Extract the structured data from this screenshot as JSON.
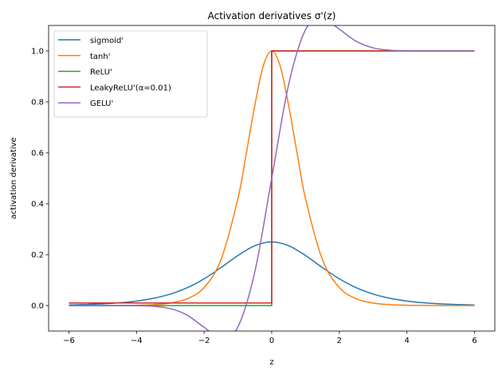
{
  "chart_data": {
    "type": "line",
    "title": "Activation derivatives σ'(z)",
    "xlabel": "z",
    "ylabel": "activation derivative",
    "xlim": [
      -6.6,
      6.6
    ],
    "ylim": [
      -0.1,
      1.1
    ],
    "xticks": [
      -6,
      -4,
      -2,
      0,
      2,
      4,
      6
    ],
    "xtick_labels": [
      "−6",
      "−4",
      "−2",
      "0",
      "2",
      "4",
      "6"
    ],
    "yticks": [
      0.0,
      0.2,
      0.4,
      0.6,
      0.8,
      1.0
    ],
    "ytick_labels": [
      "0.0",
      "0.2",
      "0.4",
      "0.6",
      "0.8",
      "1.0"
    ],
    "grid": false,
    "legend_position": "top-left",
    "series": [
      {
        "name": "sigmoid'",
        "color": "#1f77b4",
        "x": [
          -6,
          -5.5,
          -5,
          -4.5,
          -4,
          -3.5,
          -3,
          -2.5,
          -2,
          -1.5,
          -1,
          -0.5,
          0,
          0.5,
          1,
          1.5,
          2,
          2.5,
          3,
          3.5,
          4,
          4.5,
          5,
          5.5,
          6
        ],
        "y": [
          0.0025,
          0.0041,
          0.0066,
          0.0109,
          0.0177,
          0.0285,
          0.0452,
          0.0701,
          0.105,
          0.1491,
          0.1966,
          0.235,
          0.25,
          0.235,
          0.1966,
          0.1491,
          0.105,
          0.0701,
          0.0452,
          0.0285,
          0.0177,
          0.0109,
          0.0066,
          0.0041,
          0.0025
        ]
      },
      {
        "name": "tanh'",
        "color": "#ff7f0e",
        "x": [
          -6,
          -5.5,
          -5,
          -4.5,
          -4,
          -3.5,
          -3,
          -2.5,
          -2,
          -1.5,
          -1,
          -0.75,
          -0.5,
          -0.25,
          0,
          0.25,
          0.5,
          0.75,
          1,
          1.5,
          2,
          2.5,
          3,
          3.5,
          4,
          4.5,
          5,
          5.5,
          6
        ],
        "y": [
          0,
          0.0001,
          0.0002,
          0.0005,
          0.0013,
          0.0036,
          0.0099,
          0.0266,
          0.0707,
          0.1807,
          0.42,
          0.5993,
          0.7864,
          0.9411,
          1,
          0.9411,
          0.7864,
          0.5993,
          0.42,
          0.1807,
          0.0707,
          0.0266,
          0.0099,
          0.0036,
          0.0013,
          0.0005,
          0.0002,
          0.0001,
          0
        ]
      },
      {
        "name": "ReLU'",
        "color": "#2ca02c",
        "x": [
          -6,
          0,
          0,
          6
        ],
        "y": [
          0,
          0,
          1,
          1
        ]
      },
      {
        "name": "LeakyReLU'(α=0.01)",
        "color": "#d62728",
        "x": [
          -6,
          0,
          0,
          6
        ],
        "y": [
          0.01,
          0.01,
          1,
          1
        ]
      },
      {
        "name": "GELU'",
        "color": "#9467bd",
        "x": [
          -6,
          -5.5,
          -5,
          -4.5,
          -4,
          -3.5,
          -3,
          -2.5,
          -2,
          -1.5,
          -1,
          -0.5,
          0,
          0.5,
          1,
          1.5,
          2,
          2.5,
          3,
          3.5,
          4,
          4.5,
          5,
          5.5,
          6
        ],
        "y": [
          0,
          0,
          -1e-05,
          -7e-05,
          -0.0005,
          -0.0028,
          -0.0119,
          -0.0376,
          -0.0852,
          -0.1275,
          -0.0833,
          0.1325,
          0.5,
          0.8675,
          1.0833,
          1.1275,
          1.0852,
          1.0376,
          1.0119,
          1.0028,
          1.0005,
          1.0001,
          1,
          1,
          1
        ]
      }
    ]
  }
}
